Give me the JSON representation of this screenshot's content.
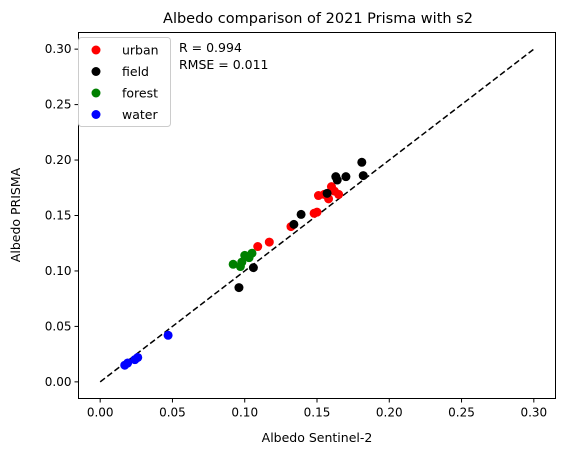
{
  "chart_data": {
    "type": "scatter",
    "title": "Albedo comparison of 2021 Prisma with s2",
    "xlabel": "Albedo Sentinel-2",
    "ylabel": "Albedo PRISMA",
    "xlim": [
      -0.015,
      0.315
    ],
    "ylim": [
      -0.015,
      0.315
    ],
    "xticks": [
      "0.00",
      "0.05",
      "0.10",
      "0.15",
      "0.20",
      "0.25",
      "0.30"
    ],
    "yticks": [
      "0.00",
      "0.05",
      "0.10",
      "0.15",
      "0.20",
      "0.25",
      "0.30"
    ],
    "grid": false,
    "legend_position": "top-left",
    "annotations": [
      "R = 0.994",
      "RMSE = 0.011"
    ],
    "reference_line": {
      "style": "dashed",
      "color": "#000000",
      "from": [
        0.0,
        0.0
      ],
      "to": [
        0.3,
        0.3
      ]
    },
    "series": [
      {
        "name": "urban",
        "color": "#ff0000",
        "points": [
          [
            0.109,
            0.122
          ],
          [
            0.117,
            0.126
          ],
          [
            0.132,
            0.14
          ],
          [
            0.148,
            0.152
          ],
          [
            0.15,
            0.153
          ],
          [
            0.151,
            0.168
          ],
          [
            0.155,
            0.169
          ],
          [
            0.158,
            0.165
          ],
          [
            0.16,
            0.176
          ],
          [
            0.162,
            0.172
          ],
          [
            0.165,
            0.169
          ]
        ]
      },
      {
        "name": "field",
        "color": "#000000",
        "points": [
          [
            0.096,
            0.085
          ],
          [
            0.106,
            0.103
          ],
          [
            0.134,
            0.142
          ],
          [
            0.139,
            0.151
          ],
          [
            0.157,
            0.17
          ],
          [
            0.163,
            0.185
          ],
          [
            0.164,
            0.182
          ],
          [
            0.17,
            0.185
          ],
          [
            0.181,
            0.198
          ],
          [
            0.182,
            0.186
          ]
        ]
      },
      {
        "name": "forest",
        "color": "#008000",
        "points": [
          [
            0.092,
            0.106
          ],
          [
            0.097,
            0.104
          ],
          [
            0.098,
            0.108
          ],
          [
            0.1,
            0.114
          ],
          [
            0.103,
            0.112
          ],
          [
            0.105,
            0.116
          ]
        ]
      },
      {
        "name": "water",
        "color": "#0000ff",
        "points": [
          [
            0.017,
            0.015
          ],
          [
            0.019,
            0.017
          ],
          [
            0.024,
            0.02
          ],
          [
            0.026,
            0.022
          ],
          [
            0.047,
            0.042
          ]
        ]
      }
    ]
  }
}
